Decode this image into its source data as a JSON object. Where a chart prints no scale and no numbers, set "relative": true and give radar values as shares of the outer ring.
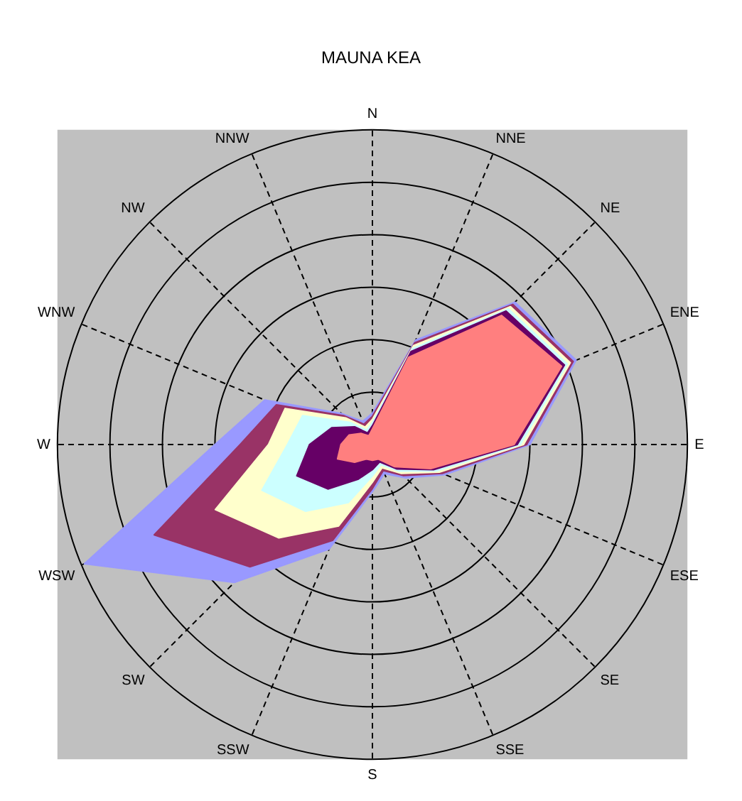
{
  "chart_data": {
    "type": "radar",
    "title": "MAUNA KEA",
    "relative": true,
    "grid": true,
    "legend": false,
    "marker": "none",
    "line_style": "solid",
    "categories": [
      "N",
      "NNE",
      "NE",
      "ENE",
      "E",
      "ESE",
      "SE",
      "SSE",
      "S",
      "SSW",
      "SW",
      "WSW",
      "W",
      "WNW",
      "NW",
      "NNW"
    ],
    "series": [
      {
        "color": "#ff7f7f",
        "values": [
          0.05,
          0.3,
          0.58,
          0.65,
          0.45,
          0.2,
          0.1,
          0.05,
          0.05,
          0.05,
          0.08,
          0.12,
          0.1,
          0.08,
          0.05,
          0.03
        ]
      },
      {
        "color": "#660066",
        "values": [
          0.06,
          0.32,
          0.6,
          0.66,
          0.46,
          0.21,
          0.11,
          0.06,
          0.08,
          0.12,
          0.2,
          0.26,
          0.2,
          0.14,
          0.08,
          0.04
        ]
      },
      {
        "color": "#ccffff",
        "values": [
          0.07,
          0.33,
          0.61,
          0.67,
          0.47,
          0.22,
          0.12,
          0.07,
          0.1,
          0.2,
          0.3,
          0.38,
          0.27,
          0.24,
          0.1,
          0.05
        ]
      },
      {
        "color": "#ffffcc",
        "values": [
          0.08,
          0.34,
          0.62,
          0.68,
          0.48,
          0.23,
          0.13,
          0.08,
          0.12,
          0.28,
          0.42,
          0.54,
          0.33,
          0.3,
          0.12,
          0.06
        ]
      },
      {
        "color": "#993366",
        "values": [
          0.09,
          0.35,
          0.63,
          0.69,
          0.49,
          0.24,
          0.14,
          0.09,
          0.14,
          0.33,
          0.55,
          0.75,
          0.42,
          0.33,
          0.13,
          0.07
        ]
      },
      {
        "color": "#9999ff",
        "values": [
          0.1,
          0.36,
          0.64,
          0.7,
          0.5,
          0.25,
          0.15,
          0.1,
          0.15,
          0.36,
          0.62,
          0.99,
          0.5,
          0.37,
          0.14,
          0.08
        ]
      }
    ]
  }
}
